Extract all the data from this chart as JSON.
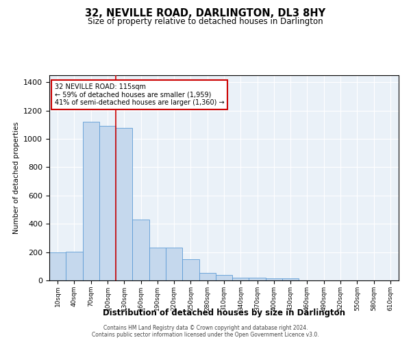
{
  "title": "32, NEVILLE ROAD, DARLINGTON, DL3 8HY",
  "subtitle": "Size of property relative to detached houses in Darlington",
  "xlabel": "Distribution of detached houses by size in Darlington",
  "ylabel": "Number of detached properties",
  "bar_color": "#c5d8ed",
  "bar_edge_color": "#5b9bd5",
  "background_color": "#eaf1f8",
  "categories": [
    "10sqm",
    "40sqm",
    "70sqm",
    "100sqm",
    "130sqm",
    "160sqm",
    "190sqm",
    "220sqm",
    "250sqm",
    "280sqm",
    "310sqm",
    "340sqm",
    "370sqm",
    "400sqm",
    "430sqm",
    "460sqm",
    "490sqm",
    "520sqm",
    "550sqm",
    "580sqm",
    "610sqm"
  ],
  "values": [
    200,
    205,
    1120,
    1090,
    1080,
    430,
    230,
    230,
    148,
    55,
    38,
    20,
    18,
    15,
    13,
    0,
    0,
    0,
    0,
    0,
    0
  ],
  "ylim": [
    0,
    1450
  ],
  "yticks": [
    0,
    200,
    400,
    600,
    800,
    1000,
    1200,
    1400
  ],
  "annotation_text": "32 NEVILLE ROAD: 115sqm\n← 59% of detached houses are smaller (1,959)\n41% of semi-detached houses are larger (1,360) →",
  "vline_x": 3.5,
  "vline_color": "#cc0000",
  "annotation_box_color": "#ffffff",
  "annotation_box_edge": "#cc0000",
  "footnote1": "Contains HM Land Registry data © Crown copyright and database right 2024.",
  "footnote2": "Contains public sector information licensed under the Open Government Licence v3.0."
}
